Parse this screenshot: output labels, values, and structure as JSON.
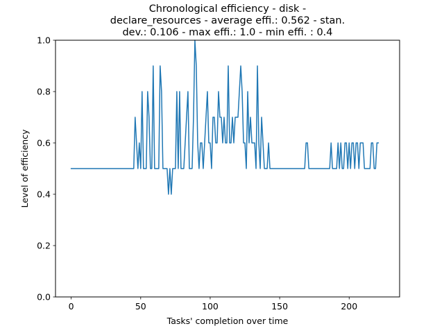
{
  "chart_data": {
    "type": "line",
    "title_lines": [
      "Chronological efficiency - disk -",
      "declare_resources - average effi.: 0.562 - stan.",
      "dev.: 0.106 - max effi.: 1.0 - min effi. : 0.4"
    ],
    "xlabel": "Tasks' completion over time",
    "ylabel": "Level of efficiency",
    "xlim": [
      -11.3,
      236.3
    ],
    "ylim": [
      0,
      1
    ],
    "xticks": [
      0,
      50,
      100,
      150,
      200
    ],
    "xtick_labels": [
      "0",
      "50",
      "100",
      "150",
      "200"
    ],
    "yticks": [
      0,
      0.2,
      0.4,
      0.6,
      0.8,
      1.0
    ],
    "ytick_labels": [
      "0.0",
      "0.2",
      "0.4",
      "0.6",
      "0.8",
      "1.0"
    ],
    "grid": false,
    "series": [
      {
        "color": "#1f77b4",
        "points": [
          [
            0,
            0.5
          ],
          [
            10,
            0.5
          ],
          [
            20,
            0.5
          ],
          [
            30,
            0.5
          ],
          [
            40,
            0.5
          ],
          [
            44,
            0.5
          ],
          [
            45,
            0.5
          ],
          [
            46,
            0.7
          ],
          [
            47,
            0.6
          ],
          [
            48,
            0.5
          ],
          [
            49,
            0.6
          ],
          [
            50,
            0.5
          ],
          [
            51,
            0.8
          ],
          [
            52,
            0.5
          ],
          [
            53,
            0.5
          ],
          [
            54,
            0.5
          ],
          [
            55,
            0.8
          ],
          [
            56,
            0.7
          ],
          [
            57,
            0.5
          ],
          [
            58,
            0.5
          ],
          [
            59,
            0.9
          ],
          [
            60,
            0.5
          ],
          [
            61,
            0.5
          ],
          [
            62,
            0.5
          ],
          [
            63,
            0.5
          ],
          [
            64,
            0.9
          ],
          [
            65,
            0.8
          ],
          [
            66,
            0.5
          ],
          [
            67,
            0.5
          ],
          [
            68,
            0.5
          ],
          [
            69,
            0.5
          ],
          [
            70,
            0.4
          ],
          [
            71,
            0.5
          ],
          [
            72,
            0.4
          ],
          [
            73,
            0.5
          ],
          [
            74,
            0.5
          ],
          [
            75,
            0.5
          ],
          [
            76,
            0.8
          ],
          [
            77,
            0.5
          ],
          [
            78,
            0.8
          ],
          [
            79,
            0.5
          ],
          [
            80,
            0.5
          ],
          [
            81,
            0.5
          ],
          [
            82,
            0.6
          ],
          [
            83,
            0.7
          ],
          [
            84,
            0.8
          ],
          [
            85,
            0.5
          ],
          [
            86,
            0.5
          ],
          [
            87,
            0.5
          ],
          [
            88,
            0.7
          ],
          [
            89,
            1.0
          ],
          [
            90,
            0.9
          ],
          [
            91,
            0.6
          ],
          [
            92,
            0.5
          ],
          [
            93,
            0.6
          ],
          [
            94,
            0.6
          ],
          [
            95,
            0.5
          ],
          [
            96,
            0.6
          ],
          [
            97,
            0.7
          ],
          [
            98,
            0.8
          ],
          [
            99,
            0.6
          ],
          [
            100,
            0.6
          ],
          [
            101,
            0.5
          ],
          [
            102,
            0.7
          ],
          [
            103,
            0.7
          ],
          [
            104,
            0.6
          ],
          [
            105,
            0.6
          ],
          [
            106,
            0.8
          ],
          [
            107,
            0.7
          ],
          [
            108,
            0.7
          ],
          [
            109,
            0.6
          ],
          [
            110,
            0.7
          ],
          [
            111,
            0.6
          ],
          [
            112,
            0.6
          ],
          [
            113,
            0.9
          ],
          [
            114,
            0.6
          ],
          [
            115,
            0.6
          ],
          [
            116,
            0.7
          ],
          [
            117,
            0.6
          ],
          [
            118,
            0.7
          ],
          [
            119,
            0.7
          ],
          [
            120,
            0.7
          ],
          [
            121,
            0.8
          ],
          [
            122,
            0.9
          ],
          [
            123,
            0.8
          ],
          [
            124,
            0.6
          ],
          [
            125,
            0.6
          ],
          [
            126,
            0.5
          ],
          [
            127,
            0.8
          ],
          [
            128,
            0.6
          ],
          [
            129,
            0.7
          ],
          [
            130,
            0.6
          ],
          [
            131,
            0.6
          ],
          [
            132,
            0.6
          ],
          [
            133,
            0.5
          ],
          [
            134,
            0.9
          ],
          [
            135,
            0.6
          ],
          [
            136,
            0.5
          ],
          [
            137,
            0.7
          ],
          [
            138,
            0.6
          ],
          [
            139,
            0.5
          ],
          [
            140,
            0.5
          ],
          [
            141,
            0.5
          ],
          [
            142,
            0.6
          ],
          [
            143,
            0.5
          ],
          [
            145,
            0.5
          ],
          [
            150,
            0.5
          ],
          [
            155,
            0.5
          ],
          [
            160,
            0.5
          ],
          [
            165,
            0.5
          ],
          [
            168,
            0.5
          ],
          [
            169,
            0.6
          ],
          [
            170,
            0.6
          ],
          [
            171,
            0.5
          ],
          [
            175,
            0.5
          ],
          [
            180,
            0.5
          ],
          [
            185,
            0.5
          ],
          [
            186,
            0.5
          ],
          [
            187,
            0.6
          ],
          [
            188,
            0.5
          ],
          [
            190,
            0.5
          ],
          [
            191,
            0.5
          ],
          [
            192,
            0.6
          ],
          [
            193,
            0.5
          ],
          [
            194,
            0.6
          ],
          [
            195,
            0.5
          ],
          [
            196,
            0.5
          ],
          [
            197,
            0.6
          ],
          [
            198,
            0.6
          ],
          [
            199,
            0.5
          ],
          [
            200,
            0.6
          ],
          [
            201,
            0.5
          ],
          [
            202,
            0.6
          ],
          [
            203,
            0.6
          ],
          [
            204,
            0.5
          ],
          [
            205,
            0.6
          ],
          [
            206,
            0.6
          ],
          [
            207,
            0.5
          ],
          [
            208,
            0.6
          ],
          [
            209,
            0.6
          ],
          [
            210,
            0.6
          ],
          [
            211,
            0.5
          ],
          [
            212,
            0.5
          ],
          [
            213,
            0.5
          ],
          [
            214,
            0.5
          ],
          [
            215,
            0.5
          ],
          [
            216,
            0.6
          ],
          [
            217,
            0.6
          ],
          [
            218,
            0.5
          ],
          [
            219,
            0.5
          ],
          [
            220,
            0.6
          ],
          [
            221,
            0.6
          ]
        ]
      }
    ]
  }
}
